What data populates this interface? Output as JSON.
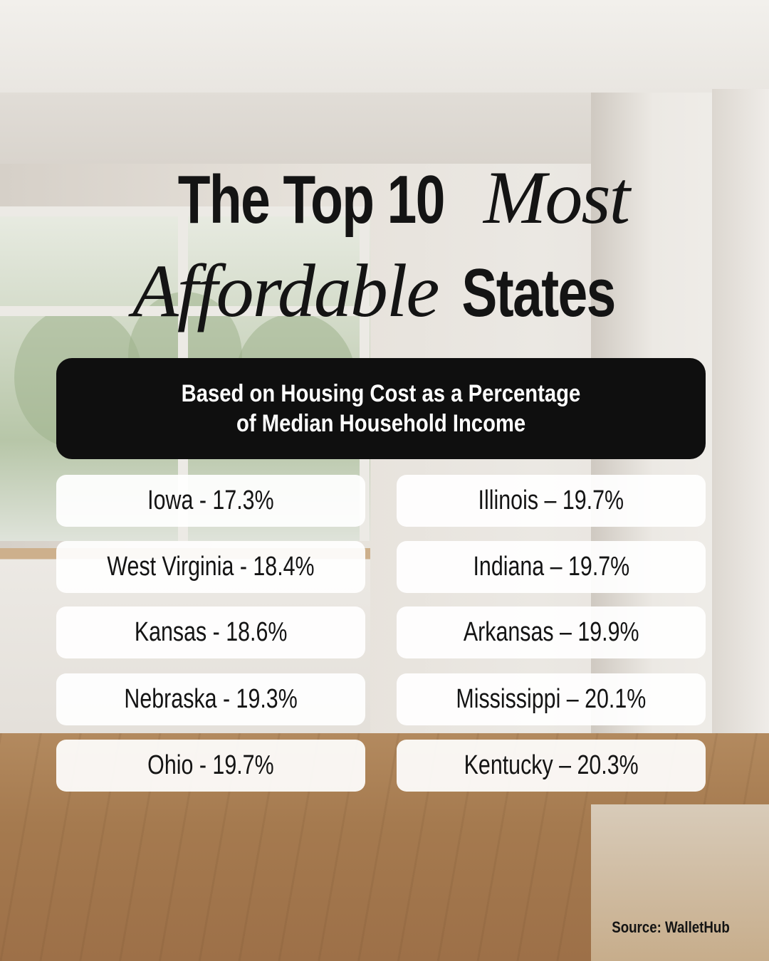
{
  "title": {
    "line1_sans": "The Top 10",
    "line1_serif": "Most",
    "line2_serif": "Affordable",
    "line2_sans": "States"
  },
  "subtitle": {
    "line1": "Based on Housing Cost as a Percentage",
    "line2": "of Median Household Income"
  },
  "states_left": [
    {
      "label": "Iowa - 17.3%"
    },
    {
      "label": "West Virginia - 18.4%"
    },
    {
      "label": "Kansas - 18.6%"
    },
    {
      "label": "Nebraska - 19.3%"
    },
    {
      "label": "Ohio - 19.7%"
    }
  ],
  "states_right": [
    {
      "label": "Illinois – 19.7%"
    },
    {
      "label": "Indiana – 19.7%"
    },
    {
      "label": "Arkansas – 19.9%"
    },
    {
      "label": "Mississippi – 20.1%"
    },
    {
      "label": "Kentucky – 20.3%"
    }
  ],
  "source": "Source: WalletHub",
  "colors": {
    "text": "#141414",
    "panel": "#0f0f0f",
    "pill": "#ffffff"
  }
}
